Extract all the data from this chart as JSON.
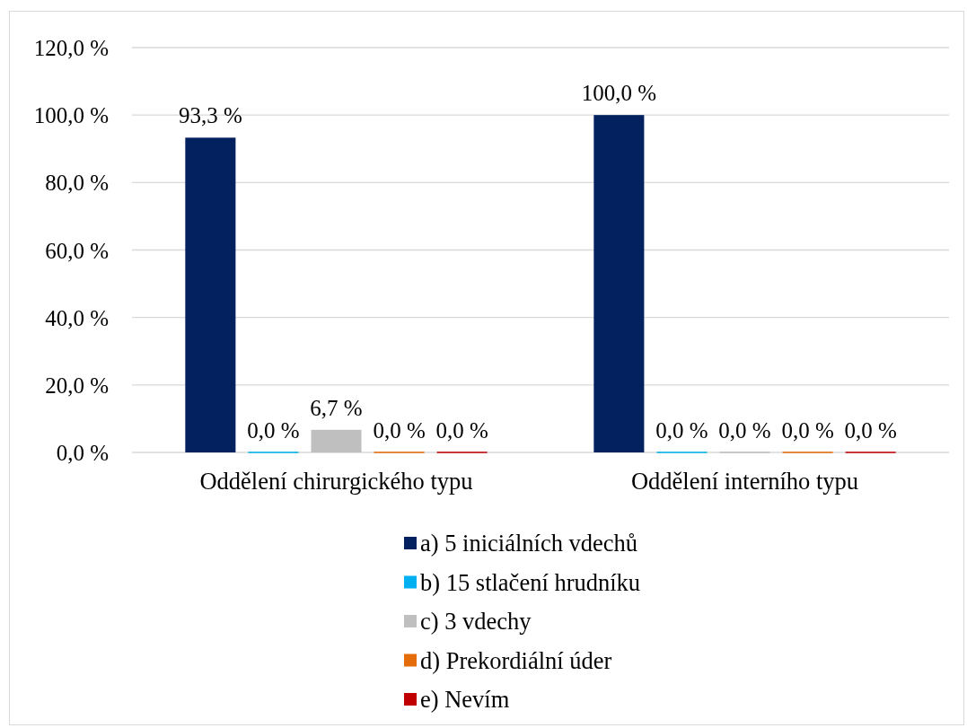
{
  "chart_data": {
    "type": "bar",
    "categories": [
      "Oddělení chirurgického typu",
      "Oddělení interního typu"
    ],
    "series": [
      {
        "name": "a) 5 iniciálních vdechů",
        "color": "#03205f",
        "values": [
          93.3,
          100
        ],
        "value_labels": [
          "93,3 %",
          "100,0 %"
        ]
      },
      {
        "name": "b) 15 stlačení hrudníku",
        "color": "#00b0f0",
        "values": [
          0,
          0
        ],
        "value_labels": [
          "0,0 %",
          "0,0 %"
        ]
      },
      {
        "name": "c) 3 vdechy",
        "color": "#bfbfbf",
        "values": [
          6.7,
          0
        ],
        "value_labels": [
          "6,7 %",
          "0,0 %"
        ]
      },
      {
        "name": "d) Prekordiální úder",
        "color": "#e46c0a",
        "values": [
          0,
          0
        ],
        "value_labels": [
          "0,0 %",
          "0,0 %"
        ]
      },
      {
        "name": "e) Nevím",
        "color": "#c00000",
        "values": [
          0,
          0
        ],
        "value_labels": [
          "0,0 %",
          "0,0 %"
        ]
      }
    ],
    "ylim": [
      0,
      120
    ],
    "yticks": [
      {
        "value": 0,
        "label": "0,0 %"
      },
      {
        "value": 20,
        "label": "20,0 %"
      },
      {
        "value": 40,
        "label": "40,0 %"
      },
      {
        "value": 60,
        "label": "60,0 %"
      },
      {
        "value": 80,
        "label": "80,0 %"
      },
      {
        "value": 100,
        "label": "100,0 %"
      },
      {
        "value": 120,
        "label": "120,0 %"
      }
    ],
    "grid": "y",
    "legend": "bottom"
  }
}
